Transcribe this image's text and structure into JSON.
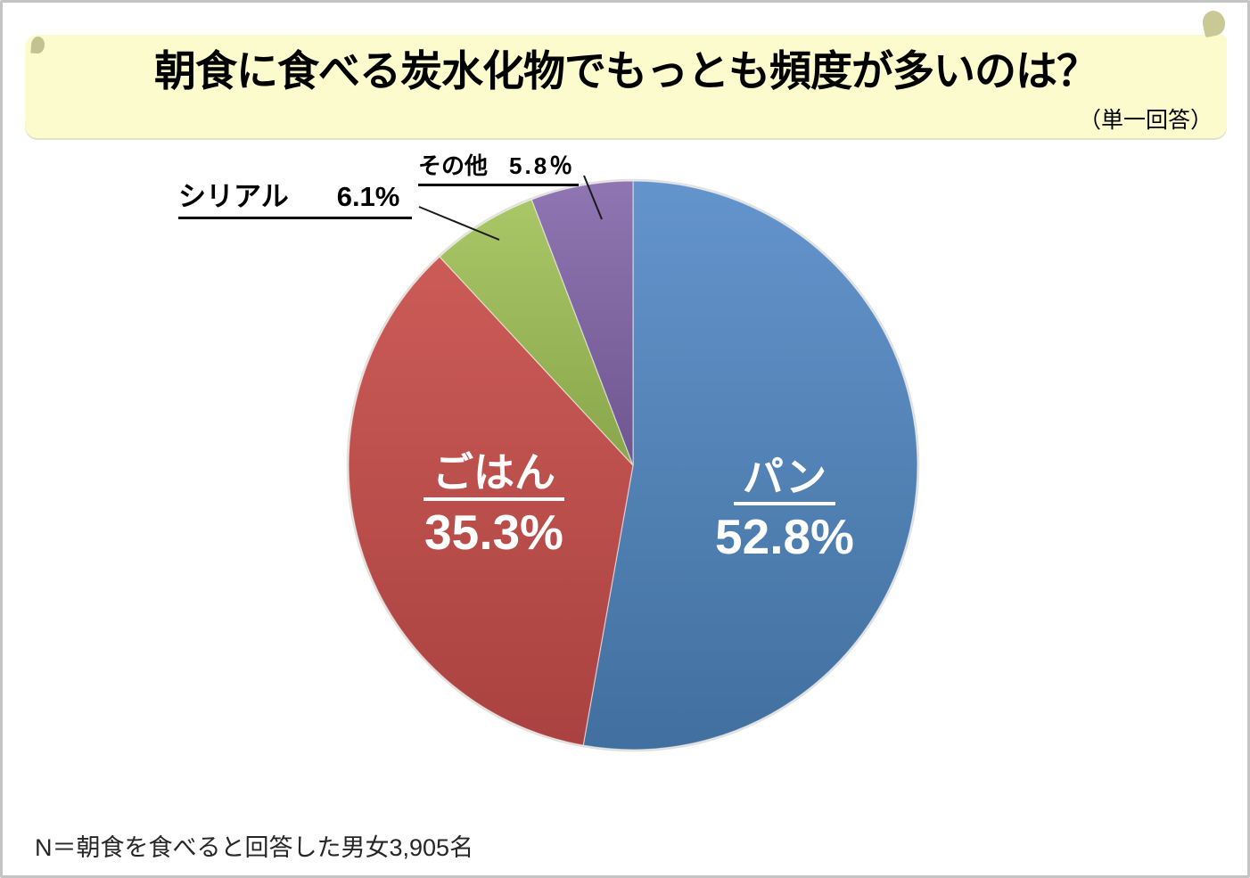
{
  "chart_data": {
    "type": "pie",
    "title": "朝食に食べる炭水化物でもっとも頻度が多いのは？",
    "subtitle": "（単一回答）",
    "note": "N＝朝食を食べると回答した男女3,905名",
    "legend": "none",
    "start_angle_deg": 0,
    "direction": "clockwise",
    "slices": [
      {
        "label": "パン",
        "value": 52.8,
        "display": "52.8%",
        "color": "#4F81BD",
        "color_light": "#6494CC",
        "color_dark": "#41709F",
        "text_color": "#FFFFFF",
        "label_position": "inside"
      },
      {
        "label": "ごはん",
        "value": 35.3,
        "display": "35.3%",
        "color": "#C0504D",
        "color_light": "#CC5B57",
        "color_dark": "#A94240",
        "text_color": "#FFFFFF",
        "label_position": "inside"
      },
      {
        "label": "シリアル",
        "value": 6.1,
        "display": "6.1%",
        "color": "#9BBB59",
        "color_light": "#A9C767",
        "color_dark": "#89A74A",
        "text_color": "#000000",
        "label_position": "callout"
      },
      {
        "label": "その他",
        "value": 5.8,
        "display": "5.8％",
        "color": "#8064A2",
        "color_light": "#8F75B1",
        "color_dark": "#6F5691",
        "text_color": "#000000",
        "label_position": "callout"
      }
    ],
    "slice_separator_color": "rgba(255,255,255,0.55)",
    "leader_line_color": "#1a1a1a"
  },
  "banner": {
    "background_color": "#FBFBCE",
    "decoration_color": "#C9C996"
  }
}
